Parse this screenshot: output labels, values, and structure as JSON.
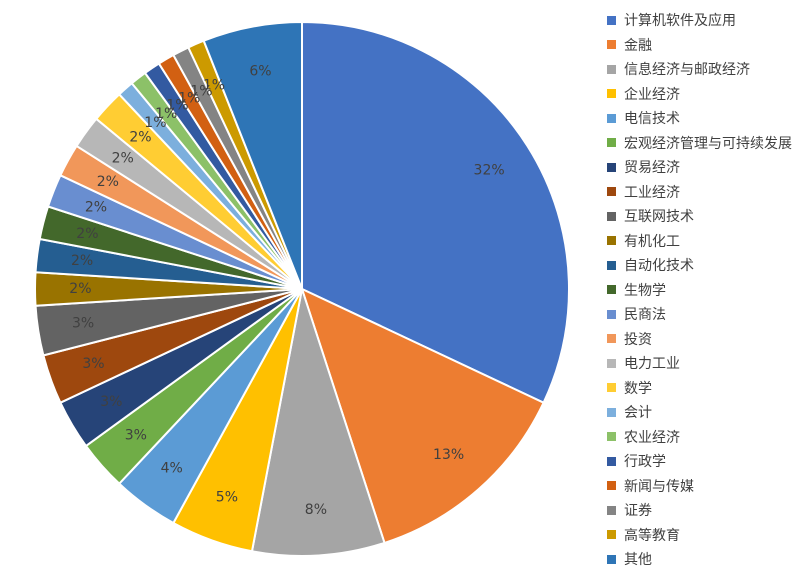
{
  "chart_data": {
    "type": "pie",
    "title": "",
    "legend_position": "right",
    "start_angle_deg": 0,
    "direction": "clockwise",
    "categories": [
      "计算机软件及应用",
      "金融",
      "信息经济与邮政经济",
      "企业经济",
      "电信技术",
      "宏观经济管理与可持续发展",
      "贸易经济",
      "工业经济",
      "互联网技术",
      "有机化工",
      "自动化技术",
      "生物学",
      "民商法",
      "投资",
      "电力工业",
      "数学",
      "会计",
      "农业经济",
      "行政学",
      "新闻与传媒",
      "证券",
      "高等教育",
      "其他"
    ],
    "values": [
      32,
      13,
      8,
      5,
      4,
      3,
      3,
      3,
      3,
      2,
      2,
      2,
      2,
      2,
      2,
      2,
      1,
      1,
      1,
      1,
      1,
      1,
      6
    ],
    "labels": [
      "32%",
      "13%",
      "8%",
      "5%",
      "4%",
      "3%",
      "3%",
      "3%",
      "3%",
      "2%",
      "2%",
      "2%",
      "2%",
      "2%",
      "2%",
      "2%",
      "1%",
      "1%",
      "1%",
      "1%",
      "1%",
      "1%",
      "6%"
    ],
    "colors": [
      "#4472C4",
      "#ED7D31",
      "#A5A5A5",
      "#FFC000",
      "#5B9BD5",
      "#70AD47",
      "#264478",
      "#9E480E",
      "#636363",
      "#997300",
      "#255E91",
      "#43682B",
      "#698ED0",
      "#F1975A",
      "#B7B7B7",
      "#FFCD33",
      "#7CAFDD",
      "#8CC168",
      "#335AA1",
      "#D26012",
      "#848484",
      "#CC9A00",
      "#2E75B6"
    ]
  }
}
